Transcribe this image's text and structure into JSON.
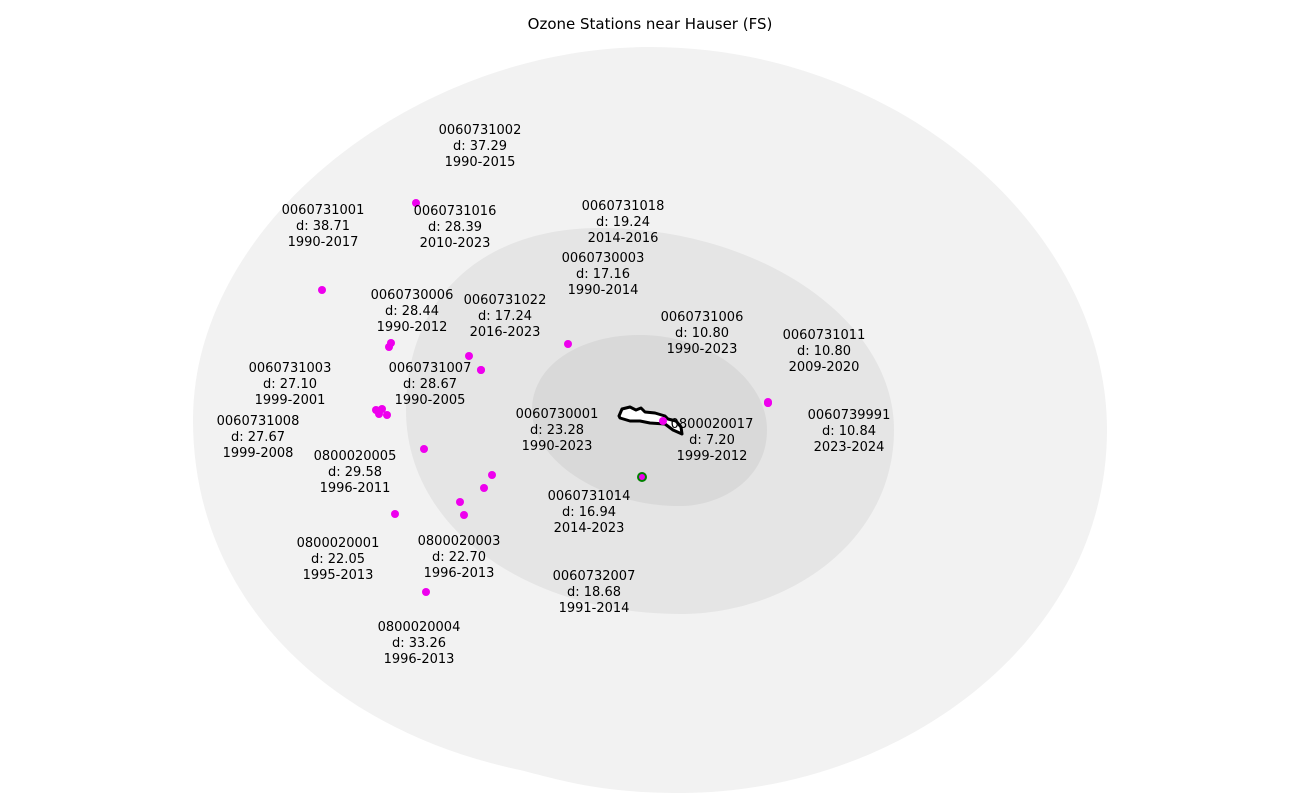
{
  "title": "Ozone Stations near Hauser (FS)",
  "colors": {
    "outer_ring": "#f2f2f2",
    "middle_ring": "#e5e5e5",
    "inner_ring": "#d9d9d9",
    "station": "#ee00ee",
    "nearest_station_outline": "#008000",
    "boundary": "#000000"
  },
  "stations": [
    {
      "id": "0060731002",
      "distance": "d: 37.29",
      "years": "1990-2015"
    },
    {
      "id": "0060731001",
      "distance": "d: 38.71",
      "years": "1990-2017"
    },
    {
      "id": "0060731016",
      "distance": "d: 28.39",
      "years": "2010-2023"
    },
    {
      "id": "0060731018",
      "distance": "d: 19.24",
      "years": "2014-2016"
    },
    {
      "id": "0060730006",
      "distance": "d: 28.44",
      "years": "1990-2012"
    },
    {
      "id": "0060730003",
      "distance": "d: 17.16",
      "years": "1990-2014"
    },
    {
      "id": "0060731022",
      "distance": "d: 17.24",
      "years": "2016-2023"
    },
    {
      "id": "0060731006",
      "distance": "d: 10.80",
      "years": "1990-2023"
    },
    {
      "id": "0060731011",
      "distance": "d: 10.80",
      "years": "2009-2020"
    },
    {
      "id": "0060731003",
      "distance": "d: 27.10",
      "years": "1999-2001"
    },
    {
      "id": "0060731007",
      "distance": "d: 28.67",
      "years": "1990-2005"
    },
    {
      "id": "0060731008",
      "distance": "d: 27.67",
      "years": "1999-2008"
    },
    {
      "id": "0060739991",
      "distance": "d: 10.84",
      "years": "2023-2024"
    },
    {
      "id": "0060730001",
      "distance": "d: 23.28",
      "years": "1990-2023"
    },
    {
      "id": "0800020017",
      "distance": "d: 7.20",
      "years": "1999-2012"
    },
    {
      "id": "0800020005",
      "distance": "d: 29.58",
      "years": "1996-2011"
    },
    {
      "id": "0060731014",
      "distance": "d: 16.94",
      "years": "2014-2023"
    },
    {
      "id": "0800020001",
      "distance": "d: 22.05",
      "years": "1995-2013"
    },
    {
      "id": "0800020003",
      "distance": "d: 22.70",
      "years": "1996-2013"
    },
    {
      "id": "0060732007",
      "distance": "d: 18.68",
      "years": "1991-2014"
    },
    {
      "id": "0800020004",
      "distance": "d: 33.26",
      "years": "1996-2013"
    }
  ]
}
